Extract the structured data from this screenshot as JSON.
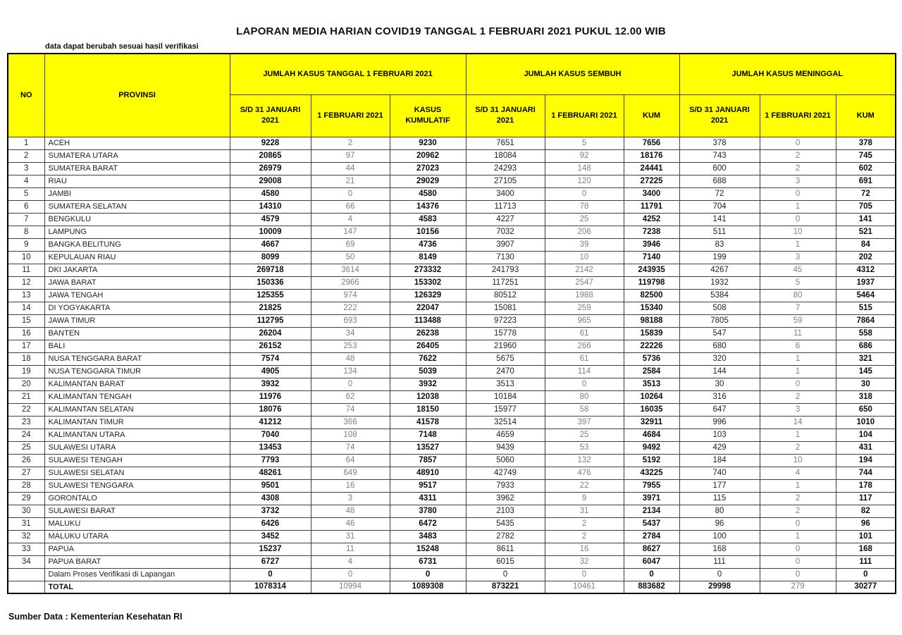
{
  "title": "LAPORAN MEDIA HARIAN COVID19 TANGGAL 1 FEBRUARI 2021 PUKUL 12.00 WIB",
  "subtitle": "data dapat berubah sesuai hasil verifikasi",
  "source": "Sumber Data : Kementerian Kesehatan RI",
  "colors": {
    "header_bg": "#ffff00",
    "muted_text": "#7f7f7f"
  },
  "table": {
    "header": {
      "no": "NO",
      "provinsi": "PROVINSI",
      "groups": [
        {
          "label": "JUMLAH KASUS TANGGAL 1 FEBRUARI 2021",
          "cols": [
            "S/D 31 JANUARI 2021",
            "1 FEBRUARI 2021",
            "KASUS KUMULATIF"
          ]
        },
        {
          "label": "JUMLAH KASUS SEMBUH",
          "cols": [
            "S/D 31 JANUARI 2021",
            "1 FEBRUARI 2021",
            "KUM"
          ]
        },
        {
          "label": "JUMLAH KASUS MENINGGAL",
          "cols": [
            "S/D 31 JANUARI 2021",
            "1 FEBRUARI 2021",
            "KUM"
          ]
        }
      ]
    },
    "rows": [
      [
        "1",
        "ACEH",
        "9228",
        "2",
        "9230",
        "7651",
        "5",
        "7656",
        "378",
        "0",
        "378"
      ],
      [
        "2",
        "SUMATERA UTARA",
        "20865",
        "97",
        "20962",
        "18084",
        "92",
        "18176",
        "743",
        "2",
        "745"
      ],
      [
        "3",
        "SUMATERA BARAT",
        "26979",
        "44",
        "27023",
        "24293",
        "148",
        "24441",
        "600",
        "2",
        "602"
      ],
      [
        "4",
        "RIAU",
        "29008",
        "21",
        "29029",
        "27105",
        "120",
        "27225",
        "688",
        "3",
        "691"
      ],
      [
        "5",
        "JAMBI",
        "4580",
        "0",
        "4580",
        "3400",
        "0",
        "3400",
        "72",
        "0",
        "72"
      ],
      [
        "6",
        "SUMATERA SELATAN",
        "14310",
        "66",
        "14376",
        "11713",
        "78",
        "11791",
        "704",
        "1",
        "705"
      ],
      [
        "7",
        "BENGKULU",
        "4579",
        "4",
        "4583",
        "4227",
        "25",
        "4252",
        "141",
        "0",
        "141"
      ],
      [
        "8",
        "LAMPUNG",
        "10009",
        "147",
        "10156",
        "7032",
        "206",
        "7238",
        "511",
        "10",
        "521"
      ],
      [
        "9",
        "BANGKA BELITUNG",
        "4667",
        "69",
        "4736",
        "3907",
        "39",
        "3946",
        "83",
        "1",
        "84"
      ],
      [
        "10",
        "KEPULAUAN RIAU",
        "8099",
        "50",
        "8149",
        "7130",
        "10",
        "7140",
        "199",
        "3",
        "202"
      ],
      [
        "11",
        "DKI JAKARTA",
        "269718",
        "3614",
        "273332",
        "241793",
        "2142",
        "243935",
        "4267",
        "45",
        "4312"
      ],
      [
        "12",
        "JAWA BARAT",
        "150336",
        "2966",
        "153302",
        "117251",
        "2547",
        "119798",
        "1932",
        "5",
        "1937"
      ],
      [
        "13",
        "JAWA TENGAH",
        "125355",
        "974",
        "126329",
        "80512",
        "1988",
        "82500",
        "5384",
        "80",
        "5464"
      ],
      [
        "14",
        "DI YOGYAKARTA",
        "21825",
        "222",
        "22047",
        "15081",
        "259",
        "15340",
        "508",
        "7",
        "515"
      ],
      [
        "15",
        "JAWA TIMUR",
        "112795",
        "693",
        "113488",
        "97223",
        "965",
        "98188",
        "7805",
        "59",
        "7864"
      ],
      [
        "16",
        "BANTEN",
        "26204",
        "34",
        "26238",
        "15778",
        "61",
        "15839",
        "547",
        "11",
        "558"
      ],
      [
        "17",
        "BALI",
        "26152",
        "253",
        "26405",
        "21960",
        "266",
        "22226",
        "680",
        "6",
        "686"
      ],
      [
        "18",
        "NUSA TENGGARA BARAT",
        "7574",
        "48",
        "7622",
        "5675",
        "61",
        "5736",
        "320",
        "1",
        "321"
      ],
      [
        "19",
        "NUSA TENGGARA TIMUR",
        "4905",
        "134",
        "5039",
        "2470",
        "114",
        "2584",
        "144",
        "1",
        "145"
      ],
      [
        "20",
        "KALIMANTAN BARAT",
        "3932",
        "0",
        "3932",
        "3513",
        "0",
        "3513",
        "30",
        "0",
        "30"
      ],
      [
        "21",
        "KALIMANTAN TENGAH",
        "11976",
        "62",
        "12038",
        "10184",
        "80",
        "10264",
        "316",
        "2",
        "318"
      ],
      [
        "22",
        "KALIMANTAN SELATAN",
        "18076",
        "74",
        "18150",
        "15977",
        "58",
        "16035",
        "647",
        "3",
        "650"
      ],
      [
        "23",
        "KALIMANTAN TIMUR",
        "41212",
        "366",
        "41578",
        "32514",
        "397",
        "32911",
        "996",
        "14",
        "1010"
      ],
      [
        "24",
        "KALIMANTAN UTARA",
        "7040",
        "108",
        "7148",
        "4659",
        "25",
        "4684",
        "103",
        "1",
        "104"
      ],
      [
        "25",
        "SULAWESI UTARA",
        "13453",
        "74",
        "13527",
        "9439",
        "53",
        "9492",
        "429",
        "2",
        "431"
      ],
      [
        "26",
        "SULAWESI TENGAH",
        "7793",
        "64",
        "7857",
        "5060",
        "132",
        "5192",
        "184",
        "10",
        "194"
      ],
      [
        "27",
        "SULAWESI SELATAN",
        "48261",
        "649",
        "48910",
        "42749",
        "476",
        "43225",
        "740",
        "4",
        "744"
      ],
      [
        "28",
        "SULAWESI TENGGARA",
        "9501",
        "16",
        "9517",
        "7933",
        "22",
        "7955",
        "177",
        "1",
        "178"
      ],
      [
        "29",
        "GORONTALO",
        "4308",
        "3",
        "4311",
        "3962",
        "9",
        "3971",
        "115",
        "2",
        "117"
      ],
      [
        "30",
        "SULAWESI BARAT",
        "3732",
        "48",
        "3780",
        "2103",
        "31",
        "2134",
        "80",
        "2",
        "82"
      ],
      [
        "31",
        "MALUKU",
        "6426",
        "46",
        "6472",
        "5435",
        "2",
        "5437",
        "96",
        "0",
        "96"
      ],
      [
        "32",
        "MALUKU UTARA",
        "3452",
        "31",
        "3483",
        "2782",
        "2",
        "2784",
        "100",
        "1",
        "101"
      ],
      [
        "33",
        "PAPUA",
        "15237",
        "11",
        "15248",
        "8611",
        "16",
        "8627",
        "168",
        "0",
        "168"
      ],
      [
        "34",
        "PAPUA BARAT",
        "6727",
        "4",
        "6731",
        "6015",
        "32",
        "6047",
        "111",
        "0",
        "111"
      ],
      [
        "",
        "Dalam Proses Verifikasi di Lapangan",
        "0",
        "0",
        "0",
        "0",
        "0",
        "0",
        "0",
        "0",
        "0"
      ],
      [
        "",
        "TOTAL",
        "1078314",
        "10994",
        "1089308",
        "873221",
        "10461",
        "883682",
        "29998",
        "279",
        "30277"
      ]
    ]
  }
}
